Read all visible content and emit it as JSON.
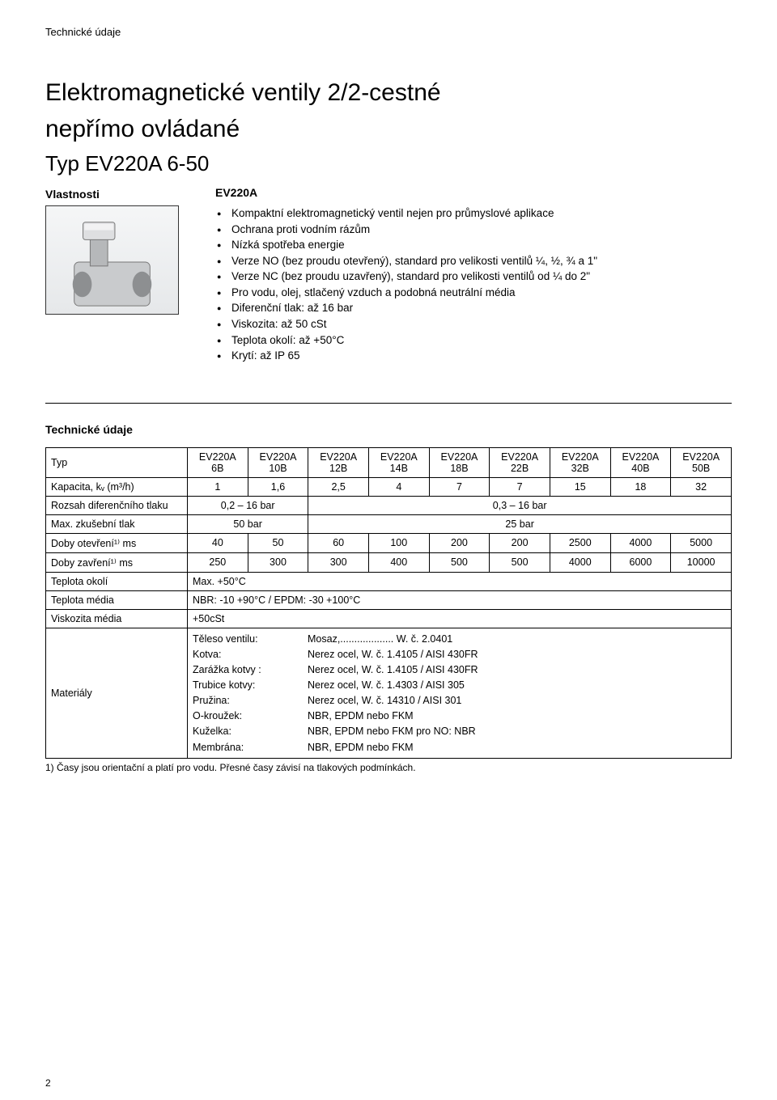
{
  "header": "Technické údaje",
  "title_l1": "Elektromagnetické ventily 2/2-cestné",
  "title_l2": "nepřímo ovládané",
  "type_line": "Typ EV220A 6-50",
  "vlastnosti": {
    "label": "Vlastnosti",
    "code": "EV220A",
    "items": [
      "Kompaktní elektromagnetický ventil nejen pro průmyslové aplikace",
      "Ochrana proti vodním rázům",
      "Nízká spotřeba energie",
      "Verze NO (bez proudu otevřený), standard pro velikosti ventilů ¼, ½, ¾ a 1\"",
      "Verze NC (bez proudu uzavřený), standard pro velikosti ventilů od ¼ do 2\"",
      "Pro vodu, olej, stlačený vzduch a podobná neutrální média",
      "Diferenční tlak: až  16 bar",
      "Viskozita: až 50 cSt",
      "Teplota okolí: až +50°C",
      "Krytí: až IP 65"
    ]
  },
  "tech_section_title": "Technické údaje",
  "table": {
    "row_headers": {
      "typ": "Typ",
      "kapacita": "Kapacita, kᵥ (m³/h)",
      "rozsah": "Rozsah diferenčního tlaku",
      "max_tlak": "Max. zkušební tlak",
      "otevreni": "Doby otevření¹⁾   ms",
      "zavreni": "Doby zavření¹⁾   ms",
      "teplota_okoli": "Teplota okolí",
      "teplota_media": "Teplota média",
      "viskozita": "Viskozita média",
      "materialy": "Materiály"
    },
    "col_headers": [
      [
        "EV220A",
        "6B"
      ],
      [
        "EV220A",
        "10B"
      ],
      [
        "EV220A",
        "12B"
      ],
      [
        "EV220A",
        "14B"
      ],
      [
        "EV220A",
        "18B"
      ],
      [
        "EV220A",
        "22B"
      ],
      [
        "EV220A",
        "32B"
      ],
      [
        "EV220A",
        "40B"
      ],
      [
        "EV220A",
        "50B"
      ]
    ],
    "kapacita": [
      "1",
      "1,6",
      "2,5",
      "4",
      "7",
      "7",
      "15",
      "18",
      "32"
    ],
    "rozsah_a": "0,2 – 16 bar",
    "rozsah_b": "0,3 – 16 bar",
    "max_a": "50 bar",
    "max_b": "25 bar",
    "otevreni": [
      "40",
      "50",
      "60",
      "100",
      "200",
      "200",
      "2500",
      "4000",
      "5000"
    ],
    "zavreni": [
      "250",
      "300",
      "300",
      "400",
      "500",
      "500",
      "4000",
      "6000",
      "10000"
    ],
    "teplota_okoli_val": "Max. +50°C",
    "teplota_media_val": "NBR: -10 +90°C / EPDM: -30 +100°C",
    "viskozita_val": "+50cSt",
    "materials": [
      [
        "Těleso ventilu:",
        "Mosaz,................... W. č. 2.0401"
      ],
      [
        "Kotva:",
        "Nerez ocel, W. č. 1.4105 / AISI 430FR"
      ],
      [
        "Zarážka kotvy :",
        "Nerez ocel, W. č. 1.4105 / AISI 430FR"
      ],
      [
        "Trubice kotvy:",
        "Nerez ocel, W. č. 1.4303 / AISI 305"
      ],
      [
        "Pružina:",
        "Nerez ocel, W. č. 14310 / AISI 301"
      ],
      [
        "O-kroužek:",
        "NBR, EPDM nebo FKM"
      ],
      [
        "Kuželka:",
        "NBR, EPDM nebo FKM  pro NO: NBR"
      ],
      [
        "Membrána:",
        "NBR, EPDM nebo FKM"
      ]
    ]
  },
  "footnote": "1) Časy jsou orientační a platí pro vodu. Přesné časy závisí na tlakových podmínkách.",
  "page_number": "2"
}
